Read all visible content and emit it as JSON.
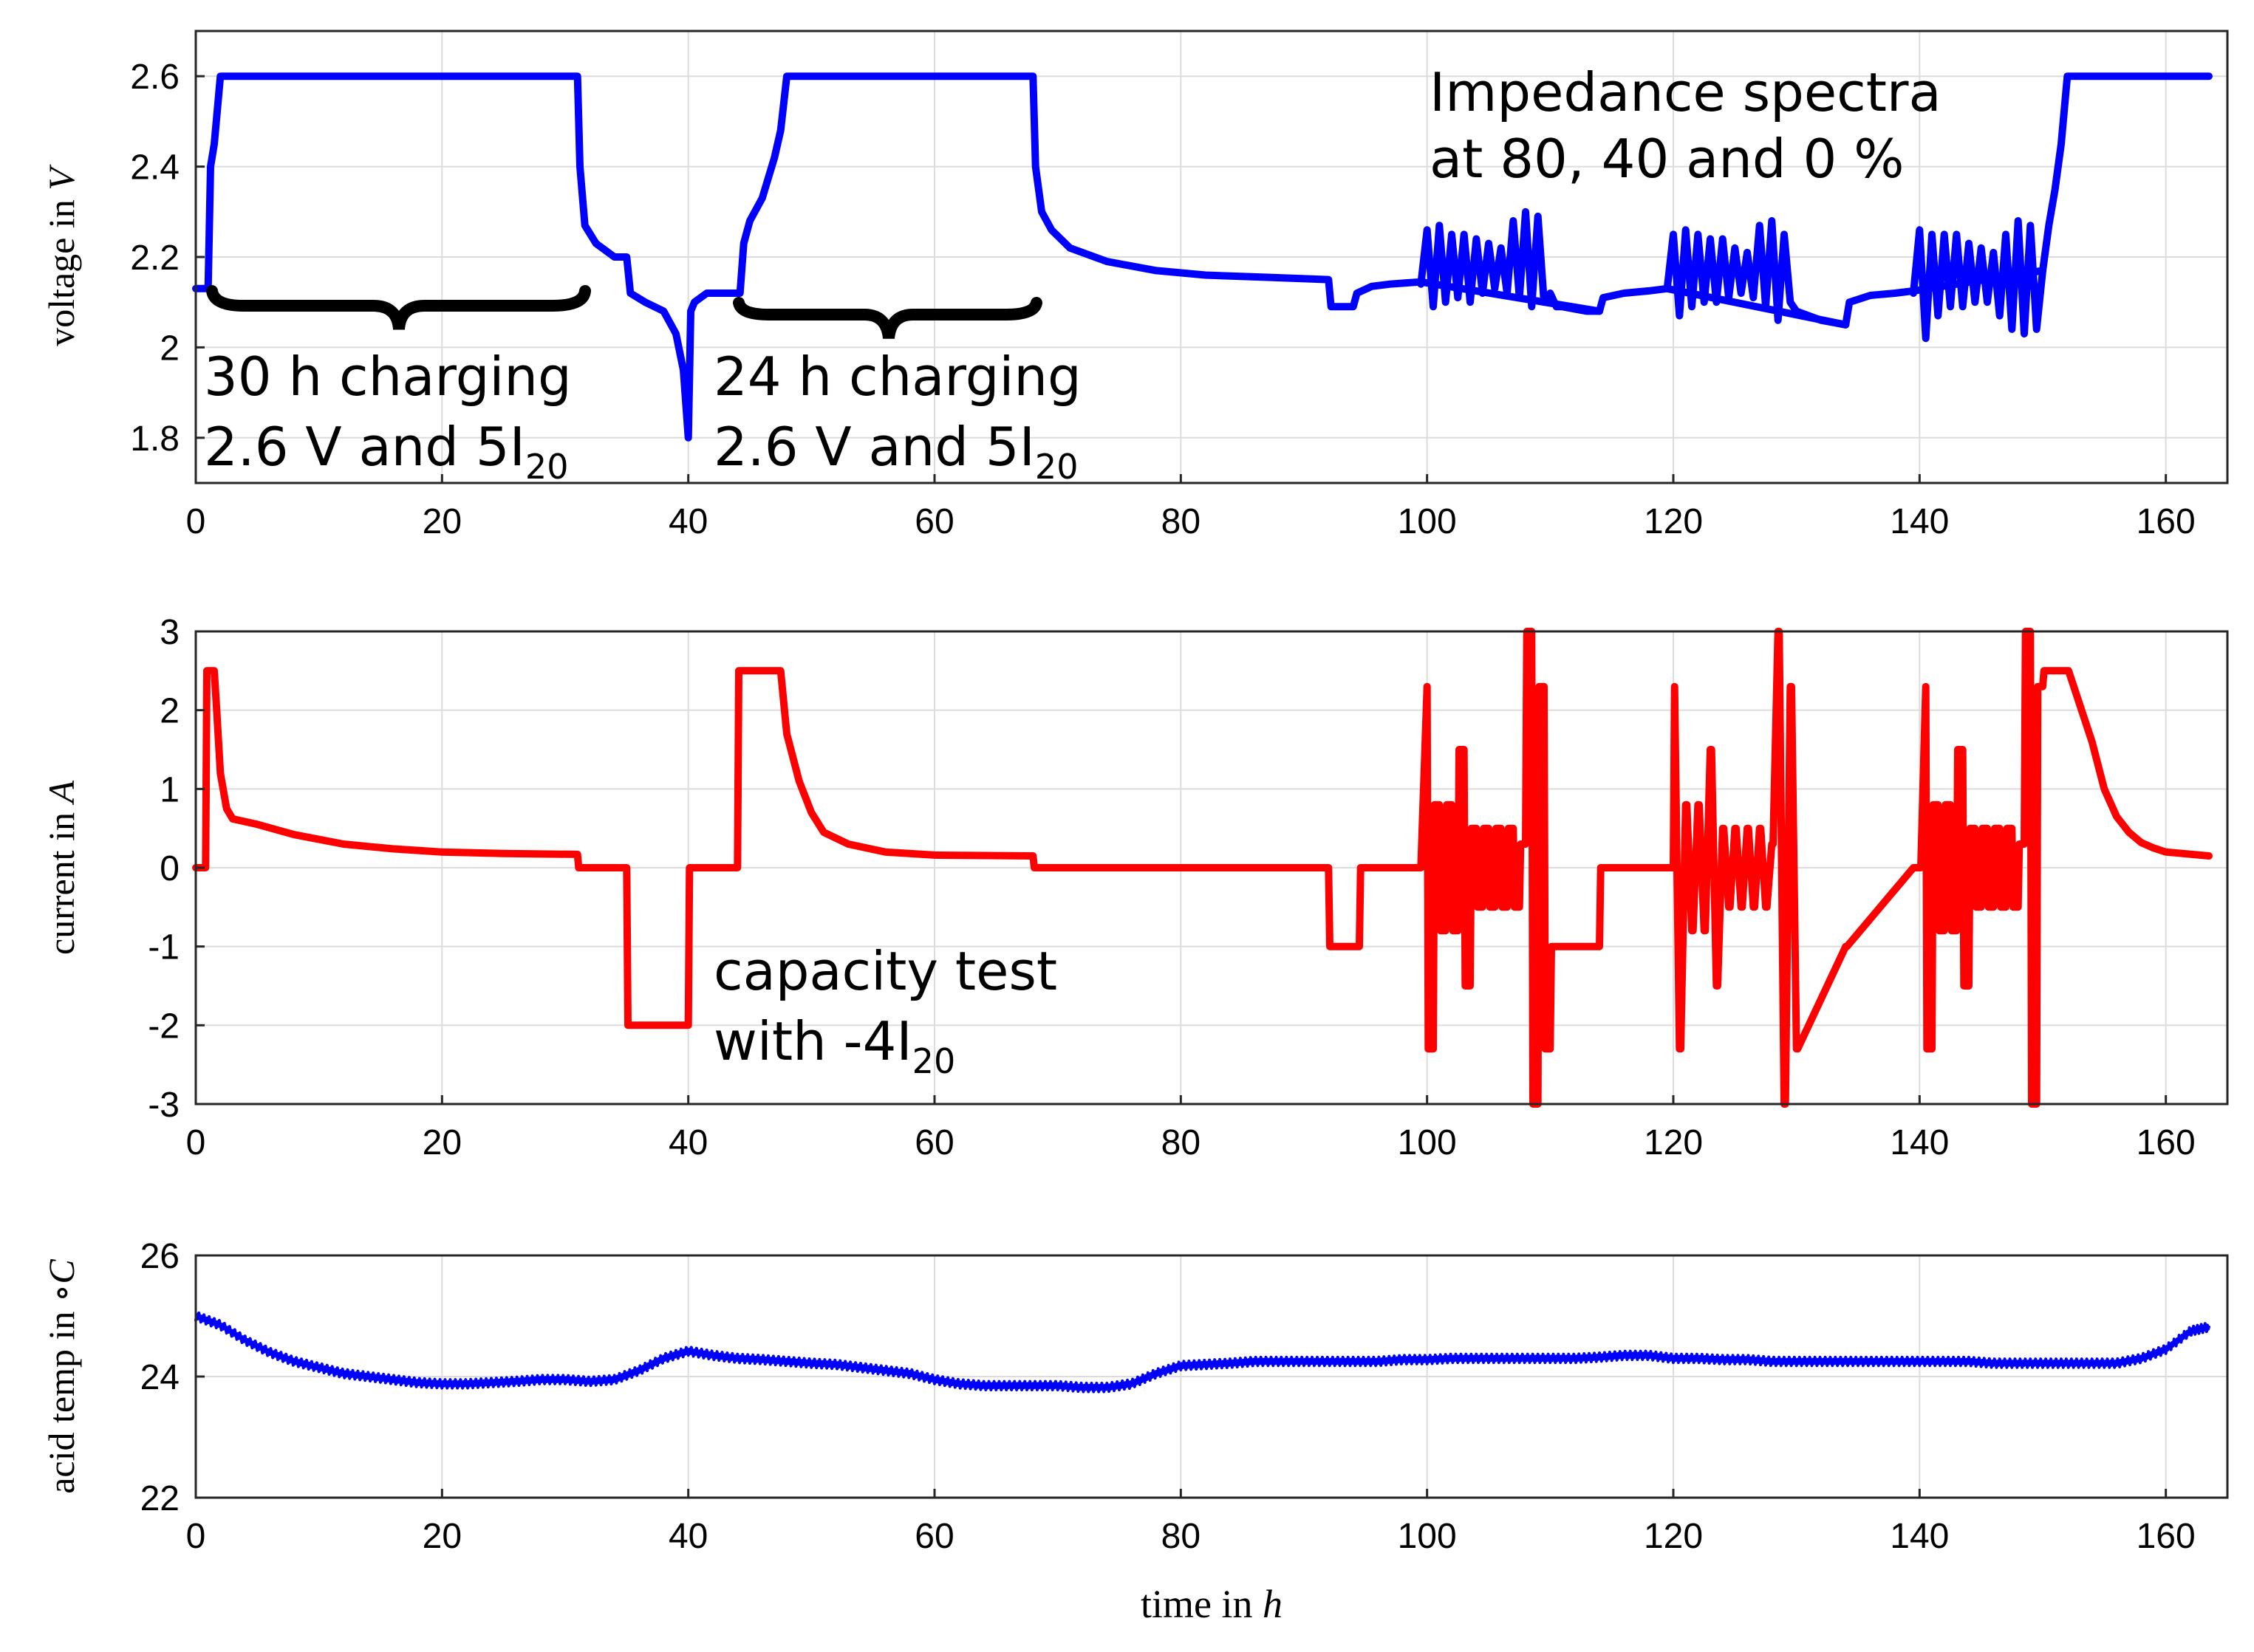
{
  "colors": {
    "voltage": "#0000ff",
    "current": "#ff0000",
    "temperature": "#0000ff",
    "brace": "#000000"
  },
  "chart_data": [
    {
      "type": "line",
      "id": "voltage",
      "title": "",
      "xlabel": "",
      "ylabel": "voltage in V",
      "ylabel_prefix": "voltage in ",
      "ylabel_unit": "V",
      "xlim": [
        0,
        165
      ],
      "ylim": [
        1.7,
        2.7
      ],
      "xticks": [
        0,
        20,
        40,
        60,
        80,
        100,
        120,
        140,
        160
      ],
      "xtick_labels": [
        "0",
        "20",
        "40",
        "60",
        "80",
        "100",
        "120",
        "140",
        "160"
      ],
      "yticks": [
        1.8,
        2.0,
        2.2,
        2.4,
        2.6
      ],
      "ytick_labels": [
        "1.8",
        "2",
        "2.2",
        "2.4",
        "2.6"
      ],
      "grid": true,
      "series": [
        {
          "name": "voltage",
          "x": [
            0.0,
            0.8,
            1.0,
            1.2,
            1.5,
            2.0,
            3.0,
            31.0,
            31.2,
            31.6,
            32.5,
            34.0,
            35.0,
            35.3,
            36.5,
            38.0,
            39.0,
            39.6,
            40.0,
            40.2,
            40.5,
            41.5,
            43.5,
            44.2,
            44.5,
            45.0,
            46.0,
            47.0,
            47.5,
            48.0,
            68.0,
            68.2,
            68.7,
            69.5,
            71.0,
            74.0,
            78.0,
            82.0,
            87.0,
            92.0,
            92.2,
            92.6,
            94.0,
            94.3,
            95.5,
            97.0,
            99.5,
            114.0,
            114.3,
            116.0,
            118.0,
            119.5,
            134.0,
            134.3,
            136.0,
            138.0,
            139.5,
            150.0,
            150.5,
            151.0,
            151.5,
            152.0,
            152.2,
            153.0,
            163.5
          ],
          "y": [
            2.13,
            2.13,
            2.13,
            2.4,
            2.45,
            2.6,
            2.6,
            2.6,
            2.4,
            2.27,
            2.23,
            2.2,
            2.2,
            2.12,
            2.1,
            2.08,
            2.03,
            1.95,
            1.8,
            2.08,
            2.1,
            2.12,
            2.12,
            2.12,
            2.23,
            2.28,
            2.33,
            2.42,
            2.48,
            2.6,
            2.6,
            2.4,
            2.3,
            2.26,
            2.22,
            2.19,
            2.17,
            2.16,
            2.155,
            2.15,
            2.09,
            2.09,
            2.09,
            2.12,
            2.135,
            2.14,
            2.145,
            2.08,
            2.11,
            2.12,
            2.125,
            2.13,
            2.05,
            2.1,
            2.115,
            2.12,
            2.125,
            2.17,
            2.27,
            2.35,
            2.45,
            2.6,
            2.6,
            2.6,
            2.6
          ]
        },
        {
          "name": "voltage-impedance-1",
          "x": [
            99.5,
            100.0,
            100.5,
            101.0,
            101.5,
            102.0,
            102.5,
            103.0,
            103.5,
            104.0,
            104.5,
            105.0,
            105.5,
            106.0,
            106.5,
            107.0,
            107.5,
            108.0,
            108.5,
            109.0,
            109.5,
            110.0,
            110.5,
            111.0,
            112.0,
            113.0,
            114.0
          ],
          "y": [
            2.14,
            2.26,
            2.09,
            2.27,
            2.1,
            2.25,
            2.11,
            2.25,
            2.1,
            2.24,
            2.12,
            2.23,
            2.13,
            2.22,
            2.12,
            2.28,
            2.11,
            2.3,
            2.09,
            2.29,
            2.1,
            2.12,
            2.09,
            2.09,
            2.085,
            2.08,
            2.08
          ]
        },
        {
          "name": "voltage-impedance-2",
          "x": [
            119.5,
            120.0,
            120.5,
            121.0,
            121.5,
            122.0,
            122.5,
            123.0,
            123.5,
            124.0,
            124.5,
            125.0,
            125.5,
            126.0,
            126.5,
            127.0,
            127.5,
            128.0,
            128.5,
            129.0,
            129.5,
            130.0,
            131.0,
            132.0,
            133.0,
            134.0
          ],
          "y": [
            2.13,
            2.25,
            2.07,
            2.26,
            2.09,
            2.25,
            2.1,
            2.24,
            2.1,
            2.24,
            2.11,
            2.22,
            2.12,
            2.21,
            2.11,
            2.27,
            2.09,
            2.28,
            2.06,
            2.25,
            2.1,
            2.08,
            2.07,
            2.06,
            2.055,
            2.05
          ]
        },
        {
          "name": "voltage-impedance-3",
          "x": [
            139.5,
            140.0,
            140.5,
            141.0,
            141.5,
            142.0,
            142.5,
            143.0,
            143.5,
            144.0,
            144.5,
            145.0,
            145.5,
            146.0,
            146.5,
            147.0,
            147.5,
            148.0,
            148.5,
            149.0,
            149.5,
            150.0
          ],
          "y": [
            2.12,
            2.26,
            2.02,
            2.25,
            2.07,
            2.25,
            2.09,
            2.25,
            2.09,
            2.23,
            2.1,
            2.22,
            2.1,
            2.21,
            2.07,
            2.25,
            2.04,
            2.28,
            2.03,
            2.27,
            2.04,
            2.17
          ]
        }
      ]
    },
    {
      "type": "line",
      "id": "current",
      "title": "",
      "xlabel": "",
      "ylabel": "current in A",
      "ylabel_prefix": "current in ",
      "ylabel_unit": "A",
      "xlim": [
        0,
        165
      ],
      "ylim": [
        -3,
        3
      ],
      "xticks": [
        0,
        20,
        40,
        60,
        80,
        100,
        120,
        140,
        160
      ],
      "xtick_labels": [
        "0",
        "20",
        "40",
        "60",
        "80",
        "100",
        "120",
        "140",
        "160"
      ],
      "yticks": [
        -3,
        -2,
        -1,
        0,
        1,
        2,
        3
      ],
      "ytick_labels": [
        "-3",
        "-2",
        "-1",
        "0",
        "1",
        "2",
        "3"
      ],
      "grid": true,
      "series": [
        {
          "name": "current",
          "x": [
            0.0,
            0.8,
            0.9,
            1.5,
            1.7,
            2.0,
            2.5,
            3.0,
            5.0,
            8.0,
            12.0,
            16.0,
            20.0,
            25.0,
            31.0,
            31.1,
            35.0,
            35.1,
            40.0,
            40.1,
            44.0,
            44.1,
            47.5,
            48.0,
            49.0,
            50.0,
            51.0,
            53.0,
            56.0,
            60.0,
            68.0,
            68.1,
            92.0,
            92.1,
            94.5,
            94.6,
            99.5,
            100.0,
            100.1,
            100.5,
            100.6,
            101.0,
            101.1,
            101.5,
            101.6,
            102.0,
            102.1,
            102.5,
            102.6,
            103.0,
            103.1,
            103.5,
            103.6,
            104.0,
            104.1,
            104.5,
            104.6,
            105.0,
            105.1,
            105.5,
            105.6,
            106.0,
            106.1,
            106.5,
            106.6,
            107.0,
            107.1,
            107.5,
            107.6,
            108.0,
            108.1,
            108.5,
            108.6,
            109.0,
            109.1,
            109.5,
            109.6,
            110.0,
            110.1,
            114.0,
            114.1,
            119.5,
            120.0,
            120.1,
            120.5,
            120.6,
            121.0,
            121.1,
            121.5,
            121.6,
            122.0,
            122.1,
            122.5,
            122.6,
            123.0,
            123.1,
            123.5,
            123.6,
            124.0,
            124.1,
            124.5,
            124.6,
            125.0,
            125.1,
            125.5,
            125.6,
            126.0,
            126.1,
            126.5,
            126.6,
            127.0,
            127.1,
            127.5,
            127.6,
            128.0,
            128.1,
            128.5,
            128.6,
            129.0,
            129.1,
            129.5,
            129.6,
            130.0,
            130.1,
            134.0,
            134.1,
            139.5,
            140.0,
            140.1,
            140.5,
            140.6,
            141.0,
            141.1,
            141.5,
            141.6,
            142.0,
            142.1,
            142.5,
            142.6,
            143.0,
            143.1,
            143.5,
            143.6,
            144.0,
            144.1,
            144.5,
            144.6,
            145.0,
            145.1,
            145.5,
            145.6,
            146.0,
            146.1,
            146.5,
            146.6,
            147.0,
            147.1,
            147.5,
            147.6,
            148.0,
            148.1,
            148.5,
            148.6,
            149.0,
            149.1,
            149.5,
            149.6,
            150.0,
            150.1,
            152.0,
            152.1,
            154.0,
            155.0,
            156.0,
            157.0,
            158.0,
            159.0,
            160.0,
            163.5
          ],
          "y": [
            0.0,
            0.0,
            2.5,
            2.5,
            2.0,
            1.2,
            0.75,
            0.62,
            0.55,
            0.42,
            0.3,
            0.24,
            0.2,
            0.18,
            0.17,
            0.0,
            0.0,
            -2.0,
            -2.0,
            0.0,
            0.0,
            2.5,
            2.5,
            1.7,
            1.1,
            0.7,
            0.45,
            0.3,
            0.2,
            0.16,
            0.15,
            0.0,
            0.0,
            -1.0,
            -1.0,
            0.0,
            0.0,
            2.3,
            -2.3,
            -2.3,
            0.8,
            0.8,
            -0.8,
            -0.8,
            0.8,
            0.8,
            -0.8,
            -0.8,
            1.5,
            1.5,
            -1.5,
            -1.5,
            0.5,
            0.5,
            -0.5,
            -0.5,
            0.5,
            0.5,
            -0.5,
            -0.5,
            0.5,
            0.5,
            -0.5,
            -0.5,
            0.5,
            0.5,
            -0.5,
            -0.5,
            0.3,
            0.3,
            3.0,
            3.0,
            -3.0,
            -3.0,
            2.3,
            2.3,
            -2.3,
            -2.3,
            -1.0,
            -1.0,
            0.0,
            0.0,
            0.0,
            2.3,
            -2.3,
            -2.3,
            0.8,
            0.8,
            -0.8,
            -0.8,
            0.8,
            0.8,
            -0.8,
            -0.8,
            1.5,
            1.5,
            -1.5,
            -1.5,
            0.5,
            0.5,
            -0.5,
            -0.5,
            0.5,
            0.5,
            -0.5,
            -0.5,
            0.5,
            0.5,
            -0.5,
            -0.5,
            0.5,
            0.5,
            -0.5,
            -0.5,
            0.3,
            0.3,
            3.0,
            3.0,
            -3.0,
            -3.0,
            2.3,
            2.3,
            -2.3,
            -2.3,
            -1.0,
            -1.0,
            0.0,
            0.0,
            0.0,
            2.3,
            -2.3,
            -2.3,
            0.8,
            0.8,
            -0.8,
            -0.8,
            0.8,
            0.8,
            -0.8,
            -0.8,
            1.5,
            1.5,
            -1.5,
            -1.5,
            0.5,
            0.5,
            -0.5,
            -0.5,
            0.5,
            0.5,
            -0.5,
            -0.5,
            0.5,
            0.5,
            -0.5,
            -0.5,
            0.5,
            0.5,
            -0.5,
            -0.5,
            0.3,
            0.3,
            3.0,
            3.0,
            -3.0,
            -3.0,
            2.3,
            2.3,
            2.5,
            2.5,
            2.5,
            1.6,
            1.0,
            0.65,
            0.45,
            0.32,
            0.25,
            0.2,
            0.15
          ]
        }
      ]
    },
    {
      "type": "line",
      "id": "temperature",
      "title": "",
      "xlabel": "time in h",
      "xlabel_prefix": "time in ",
      "xlabel_unit": "h",
      "ylabel": "acid temp in °C",
      "ylabel_prefix": "acid temp in ",
      "ylabel_unit": "∘C",
      "xlim": [
        0,
        165
      ],
      "ylim": [
        22,
        26
      ],
      "xticks": [
        0,
        20,
        40,
        60,
        80,
        100,
        120,
        140,
        160
      ],
      "xtick_labels": [
        "0",
        "20",
        "40",
        "60",
        "80",
        "100",
        "120",
        "140",
        "160"
      ],
      "yticks": [
        22,
        24,
        26
      ],
      "ytick_labels": [
        "22",
        "24",
        "26"
      ],
      "grid": true,
      "series": [
        {
          "name": "acid temperature",
          "x": [
            0,
            2,
            4,
            6,
            8,
            10,
            12,
            14,
            16,
            18,
            20,
            22,
            24,
            26,
            28,
            30,
            32,
            34,
            36,
            38,
            40,
            42,
            44,
            46,
            48,
            50,
            52,
            54,
            56,
            58,
            60,
            62,
            64,
            66,
            68,
            70,
            72,
            74,
            76,
            78,
            80,
            82,
            84,
            86,
            88,
            90,
            92,
            94,
            96,
            98,
            100,
            102,
            104,
            106,
            108,
            110,
            112,
            114,
            116,
            118,
            120,
            122,
            124,
            126,
            128,
            130,
            132,
            134,
            136,
            138,
            140,
            142,
            144,
            146,
            148,
            150,
            152,
            154,
            156,
            158,
            160,
            162,
            163.5
          ],
          "y": [
            25.0,
            24.85,
            24.6,
            24.4,
            24.25,
            24.15,
            24.05,
            24.0,
            23.95,
            23.9,
            23.88,
            23.88,
            23.9,
            23.92,
            23.95,
            23.95,
            23.92,
            23.95,
            24.1,
            24.3,
            24.42,
            24.35,
            24.3,
            24.28,
            24.25,
            24.22,
            24.2,
            24.15,
            24.1,
            24.05,
            23.95,
            23.88,
            23.85,
            23.85,
            23.85,
            23.85,
            23.82,
            23.82,
            23.88,
            24.05,
            24.18,
            24.2,
            24.22,
            24.25,
            24.25,
            24.25,
            24.25,
            24.25,
            24.25,
            24.28,
            24.28,
            24.3,
            24.3,
            24.3,
            24.3,
            24.3,
            24.3,
            24.32,
            24.35,
            24.35,
            24.3,
            24.3,
            24.28,
            24.28,
            24.25,
            24.25,
            24.25,
            24.25,
            24.25,
            24.25,
            24.25,
            24.25,
            24.25,
            24.22,
            24.22,
            24.22,
            24.22,
            24.22,
            24.22,
            24.3,
            24.45,
            24.75,
            24.82
          ]
        }
      ]
    }
  ],
  "annotations": {
    "charging1_line1": "30 h charging",
    "charging1_line2_main": "2.6 V and 5I",
    "charging1_line2_sub": "20",
    "charging2_line1": "24 h charging",
    "charging2_line2_main": "2.6 V and 5I",
    "charging2_line2_sub": "20",
    "impedance_line1": "Impedance spectra",
    "impedance_line2": "at 80, 40 and 0 %",
    "capacity_line1": "capacity test",
    "capacity_line2_main": "with -4I",
    "capacity_line2_sub": "20"
  }
}
